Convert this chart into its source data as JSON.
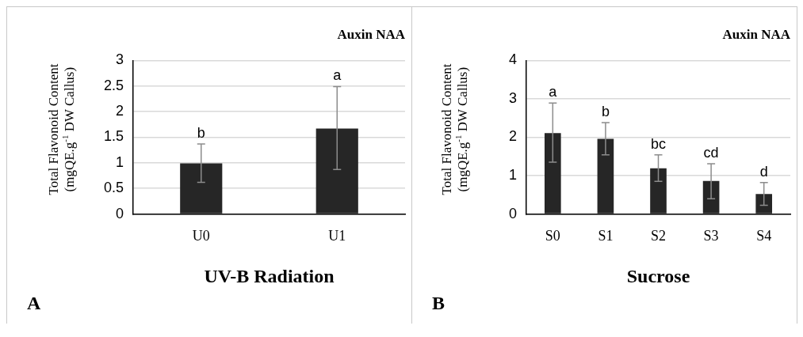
{
  "chart_data": [
    {
      "type": "bar",
      "title": "Auxin NAA",
      "xlabel": "UV-B Radiation",
      "ylabel": "Total Flavonoid Content\n(mgQE.g$^{-1}$ DW Callus)",
      "categories": [
        "U0",
        "U1"
      ],
      "values": [
        0.99,
        1.67
      ],
      "errors": [
        [
          0.62,
          1.37
        ],
        [
          0.87,
          2.49
        ]
      ],
      "color": "#262626",
      "ylim": [
        0,
        3
      ],
      "yticks": [
        0,
        0.5,
        1,
        1.5,
        2,
        2.5,
        3
      ],
      "grid": "y",
      "annotations": [
        {
          "text": "b",
          "x": "U0",
          "y": 1.37
        },
        {
          "text": "a",
          "x": "U1",
          "y": 2.49
        },
        "A"
      ]
    },
    {
      "type": "bar",
      "title": "Auxin NAA",
      "xlabel": "Sucrose",
      "ylabel": "Total Flavonoid Content\n(mgQE.g$^{-1}$ DW Callus)",
      "categories": [
        "S0",
        "S1",
        "S2",
        "S3",
        "S4"
      ],
      "values": [
        2.11,
        1.96,
        1.19,
        0.86,
        0.52
      ],
      "errors": [
        [
          1.35,
          2.89
        ],
        [
          1.54,
          2.38
        ],
        [
          0.85,
          1.54
        ],
        [
          0.4,
          1.31
        ],
        [
          0.23,
          0.82
        ]
      ],
      "color": "#262626",
      "ylim": [
        0,
        4
      ],
      "yticks": [
        0,
        1,
        2,
        3,
        4
      ],
      "grid": "y",
      "annotations": [
        {
          "text": "a",
          "x": "S0",
          "y": 2.89
        },
        {
          "text": "b",
          "x": "S1",
          "y": 2.38
        },
        {
          "text": "bc",
          "x": "S2",
          "y": 1.54
        },
        {
          "text": "cd",
          "x": "S3",
          "y": 1.31
        },
        {
          "text": "d",
          "x": "S4",
          "y": 0.82
        },
        "B"
      ]
    }
  ]
}
